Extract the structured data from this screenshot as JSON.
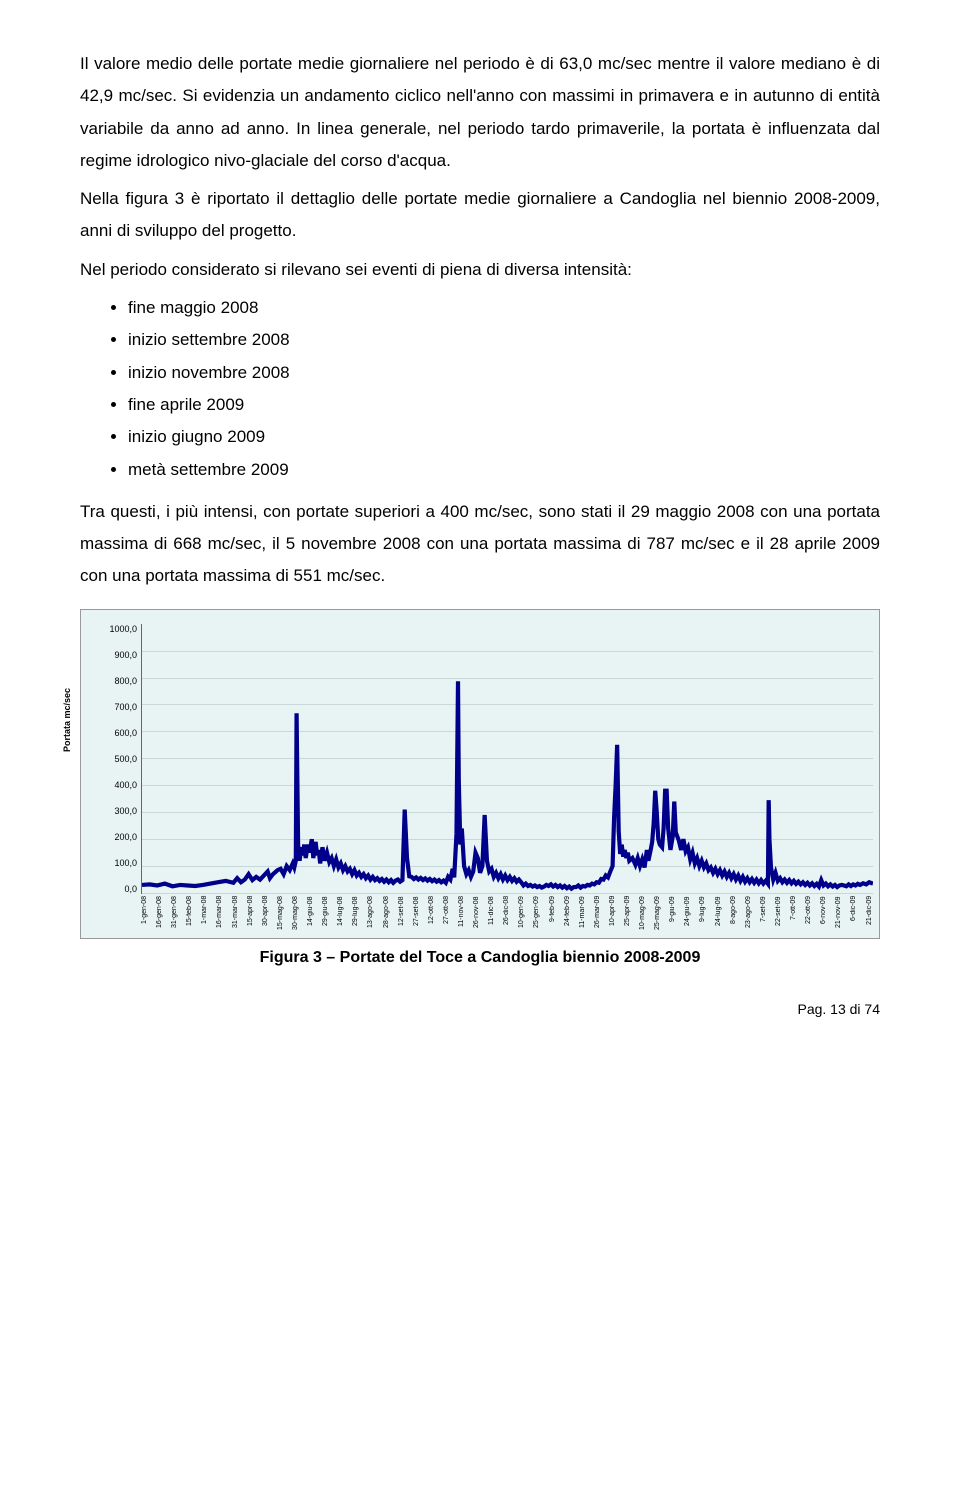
{
  "paragraphs": {
    "p1": "Il valore medio delle portate medie giornaliere nel periodo è di 63,0 mc/sec mentre il valore mediano è di 42,9 mc/sec. Si evidenzia un andamento ciclico nell'anno con massimi in primavera e in autunno di entità variabile da anno ad anno. In linea generale, nel periodo tardo primaverile, la portata è influenzata dal regime idrologico nivo-glaciale del corso d'acqua.",
    "p2": "Nella figura 3 è riportato il dettaglio delle portate medie giornaliere a Candoglia nel biennio 2008-2009, anni di sviluppo del progetto.",
    "p3": "Nel periodo considerato si rilevano sei eventi di piena di diversa intensità:",
    "p4": "Tra questi, i più intensi, con portate superiori a 400 mc/sec, sono stati il 29 maggio 2008 con una portata massima di 668 mc/sec, il 5 novembre 2008 con una portata massima di 787 mc/sec e il 28 aprile 2009 con una portata massima di 551 mc/sec."
  },
  "bullets": [
    "fine maggio 2008",
    "inizio settembre 2008",
    "inizio novembre 2008",
    "fine aprile 2009",
    "inizio giugno 2009",
    "metà settembre 2009"
  ],
  "chart": {
    "type": "line",
    "y_axis_label": "Portata mc/sec",
    "title_fontsize": 9,
    "label_fontsize": 9,
    "tick_fontsize": 9,
    "x_tick_fontsize": 7,
    "background_color": "#e8f4f4",
    "grid_color": "#c8d8d8",
    "line_color": "#00008b",
    "line_width": 1.4,
    "ylim": [
      0,
      1000
    ],
    "ytick_step": 100,
    "y_ticks": [
      "1000,0",
      "900,0",
      "800,0",
      "700,0",
      "600,0",
      "500,0",
      "400,0",
      "300,0",
      "200,0",
      "100,0",
      "0,0"
    ],
    "x_labels": [
      "1-gen-08",
      "16-gen-08",
      "31-gen-08",
      "15-feb-08",
      "1-mar-08",
      "16-mar-08",
      "31-mar-08",
      "15-apr-08",
      "30-apr-08",
      "15-mag-08",
      "30-mag-08",
      "14-giu-08",
      "29-giu-08",
      "14-lug-08",
      "29-lug-08",
      "13-ago-08",
      "28-ago-08",
      "12-set-08",
      "27-set-08",
      "12-ott-08",
      "27-ott-08",
      "11-nov-08",
      "26-nov-08",
      "11-dic-08",
      "26-dic-08",
      "10-gen-09",
      "25-gen-09",
      "9-feb-09",
      "24-feb-09",
      "11-mar-09",
      "26-mar-09",
      "10-apr-09",
      "25-apr-09",
      "10-mag-09",
      "25-mag-09",
      "9-giu-09",
      "24-giu-09",
      "9-lug-09",
      "24-lug-09",
      "8-ago-09",
      "23-ago-09",
      "7-set-09",
      "22-set-09",
      "7-ott-09",
      "22-ott-09",
      "6-nov-09",
      "21-nov-09",
      "6-dic-09",
      "21-dic-09"
    ],
    "data_points": [
      [
        0,
        30
      ],
      [
        10,
        32
      ],
      [
        20,
        28
      ],
      [
        30,
        35
      ],
      [
        40,
        25
      ],
      [
        50,
        30
      ],
      [
        60,
        28
      ],
      [
        70,
        26
      ],
      [
        80,
        30
      ],
      [
        90,
        35
      ],
      [
        100,
        40
      ],
      [
        110,
        45
      ],
      [
        120,
        38
      ],
      [
        125,
        55
      ],
      [
        130,
        40
      ],
      [
        135,
        50
      ],
      [
        140,
        70
      ],
      [
        145,
        48
      ],
      [
        150,
        60
      ],
      [
        155,
        50
      ],
      [
        160,
        65
      ],
      [
        165,
        80
      ],
      [
        168,
        55
      ],
      [
        172,
        70
      ],
      [
        178,
        85
      ],
      [
        182,
        90
      ],
      [
        186,
        70
      ],
      [
        190,
        100
      ],
      [
        194,
        85
      ],
      [
        198,
        110
      ],
      [
        200,
        95
      ],
      [
        202,
        120
      ],
      [
        203,
        668
      ],
      [
        205,
        180
      ],
      [
        207,
        120
      ],
      [
        209,
        170
      ],
      [
        211,
        140
      ],
      [
        213,
        180
      ],
      [
        215,
        130
      ],
      [
        218,
        180
      ],
      [
        220,
        150
      ],
      [
        223,
        200
      ],
      [
        225,
        130
      ],
      [
        228,
        190
      ],
      [
        230,
        140
      ],
      [
        232,
        160
      ],
      [
        234,
        110
      ],
      [
        237,
        170
      ],
      [
        240,
        120
      ],
      [
        243,
        150
      ],
      [
        246,
        115
      ],
      [
        249,
        130
      ],
      [
        252,
        100
      ],
      [
        255,
        125
      ],
      [
        258,
        95
      ],
      [
        261,
        110
      ],
      [
        264,
        85
      ],
      [
        267,
        100
      ],
      [
        270,
        80
      ],
      [
        273,
        90
      ],
      [
        276,
        70
      ],
      [
        279,
        85
      ],
      [
        282,
        65
      ],
      [
        285,
        75
      ],
      [
        288,
        60
      ],
      [
        291,
        70
      ],
      [
        294,
        55
      ],
      [
        297,
        65
      ],
      [
        300,
        50
      ],
      [
        303,
        60
      ],
      [
        306,
        48
      ],
      [
        309,
        55
      ],
      [
        312,
        45
      ],
      [
        315,
        52
      ],
      [
        318,
        42
      ],
      [
        321,
        50
      ],
      [
        324,
        40
      ],
      [
        327,
        48
      ],
      [
        330,
        38
      ],
      [
        333,
        46
      ],
      [
        336,
        50
      ],
      [
        339,
        42
      ],
      [
        342,
        48
      ],
      [
        345,
        310
      ],
      [
        348,
        130
      ],
      [
        351,
        62
      ],
      [
        354,
        60
      ],
      [
        357,
        52
      ],
      [
        360,
        58
      ],
      [
        363,
        50
      ],
      [
        366,
        56
      ],
      [
        369,
        48
      ],
      [
        372,
        54
      ],
      [
        375,
        46
      ],
      [
        378,
        52
      ],
      [
        381,
        44
      ],
      [
        384,
        50
      ],
      [
        387,
        42
      ],
      [
        390,
        48
      ],
      [
        393,
        40
      ],
      [
        396,
        46
      ],
      [
        399,
        38
      ],
      [
        402,
        60
      ],
      [
        405,
        50
      ],
      [
        408,
        90
      ],
      [
        410,
        58
      ],
      [
        413,
        220
      ],
      [
        415,
        787
      ],
      [
        416,
        420
      ],
      [
        418,
        180
      ],
      [
        420,
        240
      ],
      [
        423,
        100
      ],
      [
        426,
        70
      ],
      [
        429,
        85
      ],
      [
        432,
        60
      ],
      [
        435,
        80
      ],
      [
        438,
        150
      ],
      [
        441,
        130
      ],
      [
        444,
        75
      ],
      [
        447,
        100
      ],
      [
        450,
        290
      ],
      [
        453,
        120
      ],
      [
        456,
        80
      ],
      [
        459,
        90
      ],
      [
        462,
        60
      ],
      [
        465,
        75
      ],
      [
        468,
        55
      ],
      [
        471,
        70
      ],
      [
        474,
        50
      ],
      [
        477,
        65
      ],
      [
        480,
        48
      ],
      [
        483,
        60
      ],
      [
        486,
        45
      ],
      [
        489,
        55
      ],
      [
        492,
        42
      ],
      [
        495,
        50
      ],
      [
        498,
        40
      ],
      [
        501,
        28
      ],
      [
        504,
        35
      ],
      [
        507,
        26
      ],
      [
        510,
        30
      ],
      [
        513,
        24
      ],
      [
        516,
        28
      ],
      [
        519,
        22
      ],
      [
        522,
        26
      ],
      [
        525,
        20
      ],
      [
        528,
        24
      ],
      [
        531,
        30
      ],
      [
        534,
        26
      ],
      [
        537,
        32
      ],
      [
        540,
        24
      ],
      [
        543,
        30
      ],
      [
        546,
        22
      ],
      [
        549,
        28
      ],
      [
        552,
        20
      ],
      [
        555,
        26
      ],
      [
        558,
        18
      ],
      [
        561,
        24
      ],
      [
        564,
        16
      ],
      [
        567,
        22
      ],
      [
        570,
        22
      ],
      [
        573,
        28
      ],
      [
        576,
        20
      ],
      [
        579,
        26
      ],
      [
        582,
        24
      ],
      [
        585,
        30
      ],
      [
        588,
        28
      ],
      [
        591,
        35
      ],
      [
        594,
        32
      ],
      [
        597,
        40
      ],
      [
        600,
        38
      ],
      [
        603,
        52
      ],
      [
        606,
        50
      ],
      [
        609,
        65
      ],
      [
        612,
        58
      ],
      [
        615,
        80
      ],
      [
        618,
        100
      ],
      [
        620,
        280
      ],
      [
        622,
        400
      ],
      [
        624,
        551
      ],
      [
        626,
        230
      ],
      [
        628,
        145
      ],
      [
        630,
        180
      ],
      [
        632,
        135
      ],
      [
        634,
        160
      ],
      [
        636,
        130
      ],
      [
        638,
        150
      ],
      [
        640,
        120
      ],
      [
        644,
        130
      ],
      [
        648,
        105
      ],
      [
        651,
        130
      ],
      [
        654,
        100
      ],
      [
        657,
        125
      ],
      [
        660,
        95
      ],
      [
        663,
        160
      ],
      [
        665,
        120
      ],
      [
        668,
        160
      ],
      [
        670,
        190
      ],
      [
        672,
        260
      ],
      [
        674,
        380
      ],
      [
        676,
        300
      ],
      [
        678,
        200
      ],
      [
        680,
        180
      ],
      [
        683,
        170
      ],
      [
        685,
        240
      ],
      [
        687,
        380
      ],
      [
        689,
        380
      ],
      [
        691,
        240
      ],
      [
        694,
        160
      ],
      [
        697,
        210
      ],
      [
        699,
        340
      ],
      [
        701,
        225
      ],
      [
        705,
        195
      ],
      [
        708,
        160
      ],
      [
        711,
        200
      ],
      [
        714,
        155
      ],
      [
        717,
        170
      ],
      [
        720,
        125
      ],
      [
        723,
        150
      ],
      [
        726,
        110
      ],
      [
        729,
        130
      ],
      [
        732,
        100
      ],
      [
        735,
        120
      ],
      [
        738,
        95
      ],
      [
        741,
        110
      ],
      [
        744,
        85
      ],
      [
        747,
        95
      ],
      [
        750,
        75
      ],
      [
        753,
        90
      ],
      [
        756,
        70
      ],
      [
        759,
        85
      ],
      [
        762,
        65
      ],
      [
        765,
        80
      ],
      [
        768,
        60
      ],
      [
        771,
        75
      ],
      [
        774,
        55
      ],
      [
        777,
        70
      ],
      [
        780,
        50
      ],
      [
        783,
        65
      ],
      [
        786,
        45
      ],
      [
        789,
        60
      ],
      [
        792,
        42
      ],
      [
        795,
        55
      ],
      [
        798,
        40
      ],
      [
        801,
        52
      ],
      [
        804,
        38
      ],
      [
        807,
        50
      ],
      [
        810,
        36
      ],
      [
        813,
        48
      ],
      [
        816,
        35
      ],
      [
        819,
        45
      ],
      [
        822,
        34
      ],
      [
        823,
        345
      ],
      [
        824,
        200
      ],
      [
        826,
        95
      ],
      [
        829,
        50
      ],
      [
        832,
        75
      ],
      [
        835,
        45
      ],
      [
        838,
        55
      ],
      [
        841,
        40
      ],
      [
        844,
        50
      ],
      [
        847,
        38
      ],
      [
        850,
        48
      ],
      [
        853,
        36
      ],
      [
        856,
        45
      ],
      [
        859,
        34
      ],
      [
        862,
        42
      ],
      [
        865,
        32
      ],
      [
        868,
        40
      ],
      [
        871,
        30
      ],
      [
        874,
        38
      ],
      [
        877,
        28
      ],
      [
        880,
        36
      ],
      [
        883,
        26
      ],
      [
        886,
        34
      ],
      [
        889,
        24
      ],
      [
        892,
        48
      ],
      [
        895,
        28
      ],
      [
        898,
        35
      ],
      [
        901,
        25
      ],
      [
        904,
        32
      ],
      [
        907,
        24
      ],
      [
        910,
        30
      ],
      [
        913,
        22
      ],
      [
        916,
        28
      ],
      [
        919,
        30
      ],
      [
        922,
        28
      ],
      [
        925,
        25
      ],
      [
        928,
        32
      ],
      [
        931,
        26
      ],
      [
        934,
        32
      ],
      [
        937,
        28
      ],
      [
        940,
        34
      ],
      [
        943,
        30
      ],
      [
        947,
        36
      ],
      [
        951,
        32
      ],
      [
        955,
        40
      ],
      [
        960,
        35
      ]
    ]
  },
  "caption": "Figura 3 – Portate del Toce a Candoglia biennio 2008-2009",
  "pager": "Pag. 13 di 74"
}
